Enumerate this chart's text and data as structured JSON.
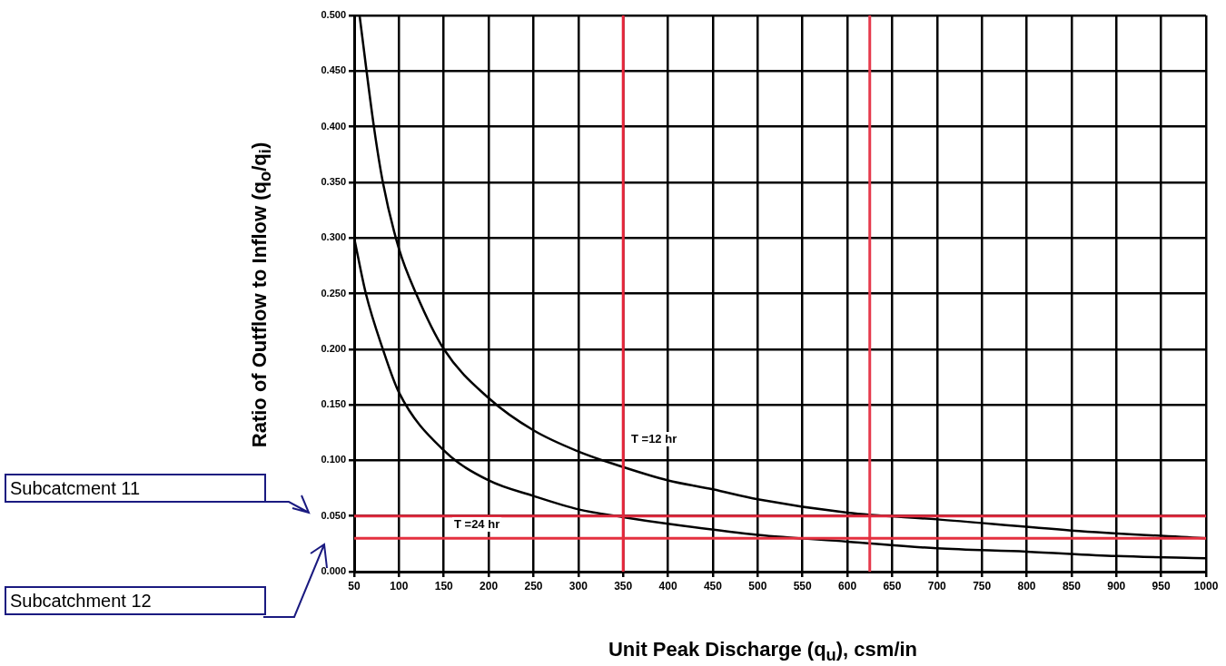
{
  "chart_data": {
    "type": "line",
    "xlabel": "Unit Peak Discharge (q$_{u}$), csm/in",
    "ylabel": "Ratio of Outflow to Inflow (q$_{o}$/q$_{i}$)",
    "series": [
      {
        "color": "#000000",
        "x": [
          56,
          72,
          82,
          100,
          119,
          150,
          200,
          250,
          300,
          350,
          400,
          450,
          500,
          600,
          700,
          850,
          1000
        ],
        "values": [
          0.5,
          0.4,
          0.35,
          0.29,
          0.25,
          0.2,
          0.156,
          0.127,
          0.108,
          0.094,
          0.082,
          0.074,
          0.065,
          0.053,
          0.047,
          0.037,
          0.03
        ]
      },
      {
        "color": "#000000",
        "x": [
          50,
          63,
          82,
          100,
          150,
          200,
          250,
          300,
          350,
          400,
          500,
          600,
          700,
          800,
          900,
          1000
        ],
        "values": [
          0.3,
          0.25,
          0.2,
          0.161,
          0.109,
          0.082,
          0.068,
          0.056,
          0.049,
          0.043,
          0.033,
          0.027,
          0.021,
          0.018,
          0.014,
          0.012
        ]
      }
    ],
    "xlim": [
      50,
      1000
    ],
    "xticks": [
      50,
      100,
      150,
      200,
      250,
      300,
      350,
      400,
      450,
      500,
      550,
      600,
      650,
      700,
      750,
      800,
      850,
      900,
      950,
      1000
    ],
    "ylim": [
      0,
      0.5
    ],
    "yticks": [
      {
        "value": 0,
        "label": "0.000"
      },
      {
        "value": 0.05,
        "label": "0.050"
      },
      {
        "value": 0.1,
        "label": "0.100"
      },
      {
        "value": 0.15,
        "label": "0.150"
      },
      {
        "value": 0.2,
        "label": "0.200"
      },
      {
        "value": 0.25,
        "label": "0.250"
      },
      {
        "value": 0.3,
        "label": "0.300"
      },
      {
        "value": 0.35,
        "label": "0.350"
      },
      {
        "value": 0.4,
        "label": "0.400"
      },
      {
        "value": 0.45,
        "label": "0.450"
      },
      {
        "value": 0.5,
        "label": "0.500"
      }
    ],
    "grid": true,
    "marker": "none",
    "line_style": "solid",
    "ref_lines": [
      {
        "axis": "x",
        "value": 350,
        "color": "#e8253a"
      },
      {
        "axis": "x",
        "value": 625,
        "color": "#e63a4c"
      },
      {
        "axis": "y",
        "value": 0.05,
        "color": "#e02a3e"
      },
      {
        "axis": "y",
        "value": 0.03,
        "color": "#e4303f"
      }
    ],
    "annotations": [
      "T =12 hr",
      "T =24 hr",
      "Subcatcment 11",
      "Subcatchment 12"
    ]
  }
}
